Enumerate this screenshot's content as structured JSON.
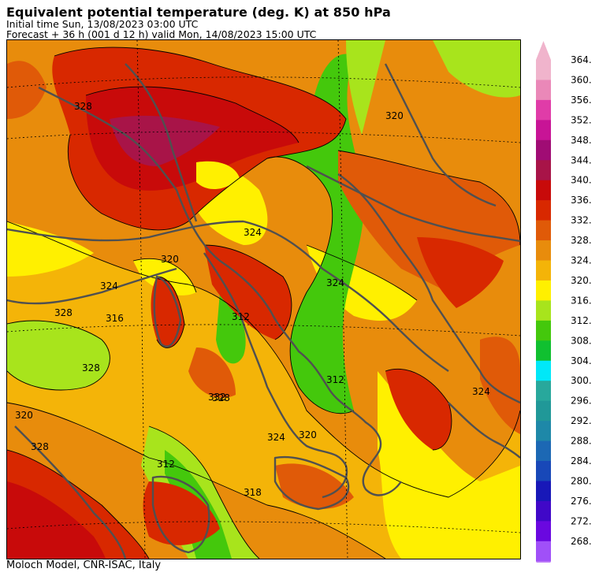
{
  "header": {
    "title": "Equivalent potential temperature (deg. K) at 850 hPa",
    "initial_time": "Initial time  Sun, 13/08/2023  03:00 UTC",
    "forecast": "Forecast  +  36 h  (001 d 12 h)  valid Mon, 14/08/2023 15:00 UTC"
  },
  "footer": "Moloch Model, CNR-ISAC, Italy",
  "colorbar": {
    "levels": [
      {
        "label": "364.",
        "color": "#f0b4cc"
      },
      {
        "label": "360.",
        "color": "#ea88b8"
      },
      {
        "label": "356.",
        "color": "#e03ca8"
      },
      {
        "label": "352.",
        "color": "#c81496"
      },
      {
        "label": "348.",
        "color": "#a00c74"
      },
      {
        "label": "344.",
        "color": "#a81448"
      },
      {
        "label": "340.",
        "color": "#c80a0a"
      },
      {
        "label": "336.",
        "color": "#d82800"
      },
      {
        "label": "332.",
        "color": "#e05a08"
      },
      {
        "label": "328.",
        "color": "#e88c0c"
      },
      {
        "label": "324.",
        "color": "#f4b408"
      },
      {
        "label": "320.",
        "color": "#fff000"
      },
      {
        "label": "316.",
        "color": "#a8e41c"
      },
      {
        "label": "312.",
        "color": "#44c80c"
      },
      {
        "label": "308.",
        "color": "#10c030"
      },
      {
        "label": "304.",
        "color": "#00e8f8"
      },
      {
        "label": "300.",
        "color": "#28a89c"
      },
      {
        "label": "296.",
        "color": "#209898"
      },
      {
        "label": "292.",
        "color": "#1e88a8"
      },
      {
        "label": "288.",
        "color": "#1c68b4"
      },
      {
        "label": "284.",
        "color": "#1848b8"
      },
      {
        "label": "280.",
        "color": "#1818b8"
      },
      {
        "label": "276.",
        "color": "#4008c8"
      },
      {
        "label": "272.",
        "color": "#6a08e0"
      },
      {
        "label": "268.",
        "color": "#a050f8"
      }
    ],
    "top_arrow_color": "#f0b4cc",
    "bottom_arrow_color": "#c080f8"
  },
  "map": {
    "contour_labels": [
      "328",
      "320",
      "328",
      "320",
      "324",
      "328",
      "332",
      "316",
      "328",
      "312",
      "324",
      "320",
      "324",
      "312",
      "318",
      "312",
      "328",
      "324",
      "320",
      "324"
    ]
  }
}
